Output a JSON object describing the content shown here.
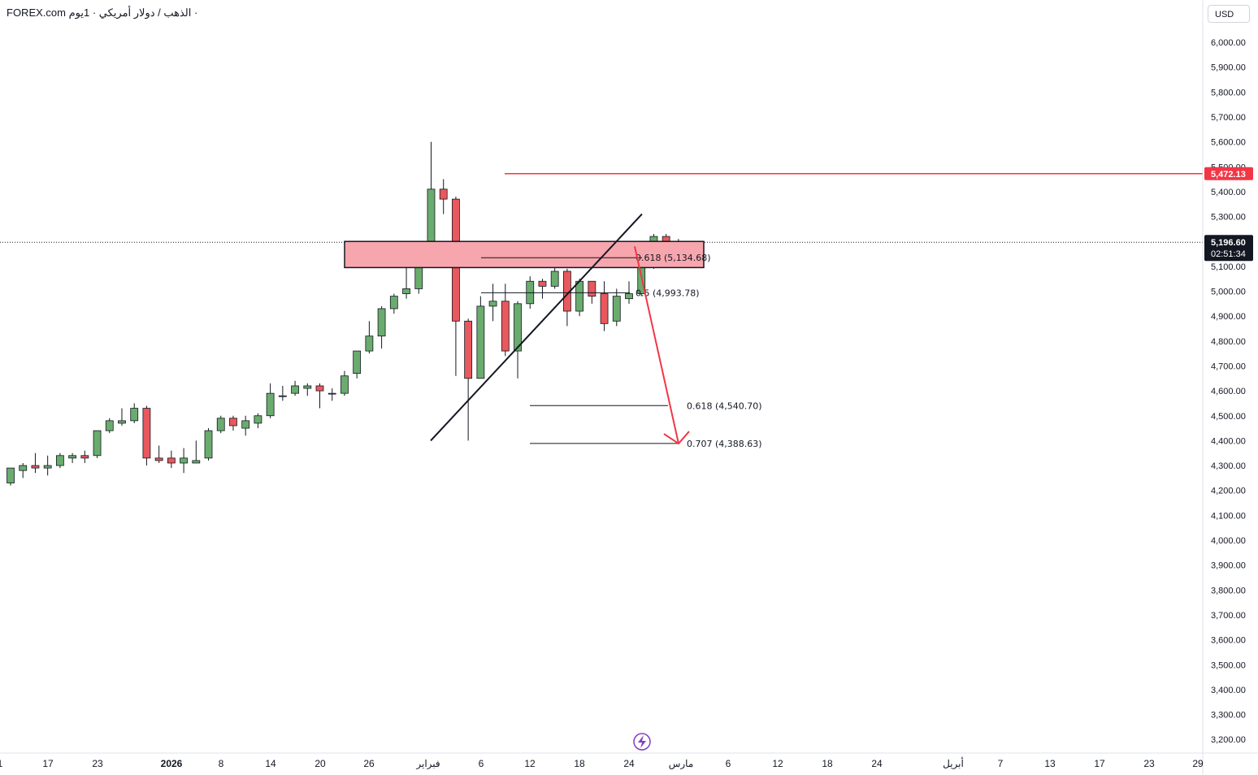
{
  "header": {
    "symbol": "FOREX.com",
    "description": "الذهب / دولار أمريكي · 1يوم ·"
  },
  "currency_button": "USD",
  "colors": {
    "up": "#6aac6d",
    "down": "#e8585d",
    "zone_fill": "#f7a6ad",
    "resistance": "#f23645",
    "arrow": "#f23645",
    "price_label_bg": "#131722"
  },
  "chart_data": {
    "type": "candlestick",
    "ylim": [
      3160,
      6080
    ],
    "y_ticks": [
      "6,000.00",
      "5,900.00",
      "5,800.00",
      "5,700.00",
      "5,600.00",
      "5,500.00",
      "5,400.00",
      "5,300.00",
      "5,100.00",
      "5,000.00",
      "4,900.00",
      "4,800.00",
      "4,700.00",
      "4,600.00",
      "4,500.00",
      "4,400.00",
      "4,300.00",
      "4,200.00",
      "4,100.00",
      "4,000.00",
      "3,900.00",
      "3,800.00",
      "3,700.00",
      "3,600.00",
      "3,500.00",
      "3,400.00",
      "3,300.00",
      "3,200.00"
    ],
    "x_ticks": [
      "1",
      "17",
      "23",
      "2026",
      "8",
      "14",
      "20",
      "26",
      "فبراير",
      "6",
      "12",
      "18",
      "24",
      "مارس",
      "6",
      "12",
      "18",
      "24",
      "أبريل",
      "7",
      "13",
      "17",
      "23",
      "29"
    ],
    "candles": [
      [
        4230,
        4290,
        4220,
        4280
      ],
      [
        4280,
        4300,
        4250,
        4310
      ],
      [
        4300,
        4290,
        4270,
        4350
      ],
      [
        4290,
        4300,
        4260,
        4340
      ],
      [
        4300,
        4340,
        4290,
        4350
      ],
      [
        4330,
        4340,
        4310,
        4350
      ],
      [
        4340,
        4330,
        4310,
        4360
      ],
      [
        4340,
        4440,
        4330,
        4440
      ],
      [
        4440,
        4480,
        4430,
        4490
      ],
      [
        4470,
        4480,
        4460,
        4530
      ],
      [
        4480,
        4530,
        4470,
        4550
      ],
      [
        4530,
        4330,
        4300,
        4540
      ],
      [
        4330,
        4320,
        4310,
        4380
      ],
      [
        4330,
        4310,
        4290,
        4360
      ],
      [
        4310,
        4330,
        4270,
        4370
      ],
      [
        4310,
        4320,
        4310,
        4400
      ],
      [
        4330,
        4440,
        4320,
        4450
      ],
      [
        4440,
        4490,
        4430,
        4500
      ],
      [
        4490,
        4460,
        4440,
        4500
      ],
      [
        4450,
        4480,
        4420,
        4500
      ],
      [
        4470,
        4500,
        4450,
        4510
      ],
      [
        4500,
        4590,
        4490,
        4630
      ],
      [
        4580,
        4580,
        4560,
        4620
      ],
      [
        4590,
        4620,
        4580,
        4640
      ],
      [
        4610,
        4620,
        4580,
        4630
      ],
      [
        4620,
        4600,
        4530,
        4630
      ],
      [
        4590,
        4590,
        4560,
        4610
      ],
      [
        4590,
        4660,
        4580,
        4680
      ],
      [
        4670,
        4760,
        4650,
        4760
      ],
      [
        4760,
        4820,
        4750,
        4880
      ],
      [
        4820,
        4930,
        4770,
        4940
      ],
      [
        4930,
        4980,
        4910,
        4990
      ],
      [
        4990,
        5010,
        4970,
        5100
      ],
      [
        5010,
        5170,
        4990,
        5200
      ],
      [
        5170,
        5410,
        5100,
        5600
      ],
      [
        5410,
        5370,
        5310,
        5450
      ],
      [
        5370,
        4880,
        4660,
        5380
      ],
      [
        4880,
        4650,
        4400,
        4890
      ],
      [
        4650,
        4940,
        4650,
        4980
      ],
      [
        4940,
        4960,
        4880,
        5030
      ],
      [
        4960,
        4760,
        4740,
        5030
      ],
      [
        4760,
        4950,
        4650,
        4960
      ],
      [
        4950,
        5040,
        4930,
        5060
      ],
      [
        5040,
        5020,
        4970,
        5050
      ],
      [
        5020,
        5080,
        5010,
        5110
      ],
      [
        5080,
        4920,
        4860,
        5090
      ],
      [
        4920,
        5040,
        4900,
        5050
      ],
      [
        5040,
        4980,
        4950,
        5040
      ],
      [
        4990,
        4870,
        4840,
        5040
      ],
      [
        4880,
        4980,
        4860,
        5010
      ],
      [
        4970,
        4990,
        4950,
        5040
      ],
      [
        4990,
        5100,
        4980,
        5110
      ],
      [
        5100,
        5220,
        5090,
        5230
      ],
      [
        5220,
        5140,
        5110,
        5230
      ],
      [
        5140,
        5200,
        5130,
        5210
      ]
    ],
    "last_price": "5,196.60",
    "countdown": "02:51:34",
    "resistance_price": "5,472.13",
    "fib_labels": [
      "0.618 (5,134.68)",
      "0.5 (4,993.78)",
      "0.618 (4,540.70)",
      "0.707 (4,388.63)"
    ],
    "fib_values": [
      5134.68,
      4993.78,
      4540.7,
      4388.63
    ],
    "zone": [
      5095,
      5200
    ]
  }
}
